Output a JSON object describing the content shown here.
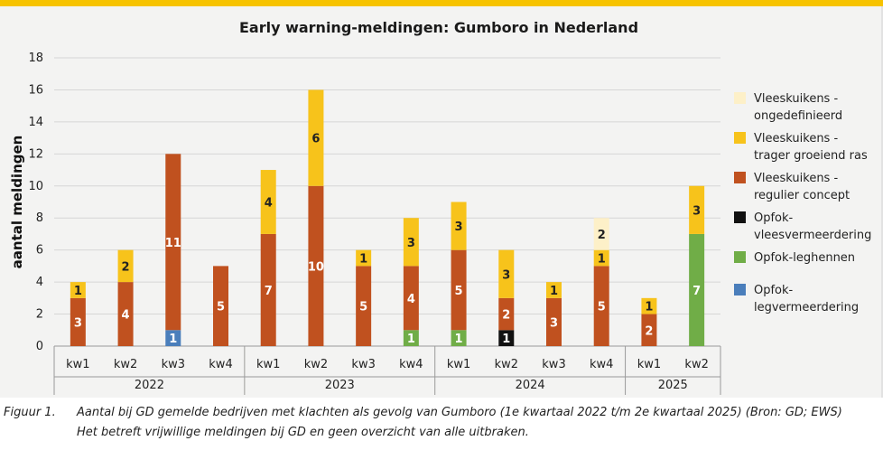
{
  "chart_data": {
    "type": "bar",
    "stacked": true,
    "title": "Early warning-meldingen: Gumboro in Nederland",
    "ylabel": "aantal meldingen",
    "ylim": [
      0,
      18
    ],
    "yticks": [
      "0",
      "2",
      "4",
      "6",
      "8",
      "10",
      "12",
      "14",
      "16",
      "18"
    ],
    "categories": [
      "kw1",
      "kw2",
      "kw3",
      "kw4",
      "kw1",
      "kw2",
      "kw3",
      "kw4",
      "kw1",
      "kw2",
      "kw3",
      "kw4",
      "kw1",
      "kw2"
    ],
    "years": [
      {
        "label": "2022",
        "count": 4
      },
      {
        "label": "2023",
        "count": 4
      },
      {
        "label": "2024",
        "count": 4
      },
      {
        "label": "2025",
        "count": 2
      }
    ],
    "series": [
      {
        "name": "Opfok-legvermeerdering",
        "color": "#4a7ebb",
        "values": [
          0,
          0,
          1,
          0,
          0,
          0,
          0,
          0,
          0,
          0,
          0,
          0,
          0,
          0
        ]
      },
      {
        "name": "Opfok-leghennen",
        "color": "#70ad47",
        "values": [
          0,
          0,
          0,
          0,
          0,
          0,
          0,
          1,
          1,
          0,
          0,
          0,
          0,
          7
        ]
      },
      {
        "name": "Opfok-vleesvermeerdering",
        "color": "#111111",
        "values": [
          0,
          0,
          0,
          0,
          0,
          0,
          0,
          0,
          0,
          1,
          0,
          0,
          0,
          0
        ]
      },
      {
        "name": "Vleeskuikens - regulier concept",
        "color": "#c0511f",
        "values": [
          3,
          4,
          11,
          5,
          7,
          10,
          5,
          4,
          5,
          2,
          3,
          5,
          2,
          0
        ]
      },
      {
        "name": "Vleeskuikens - trager groeiend ras",
        "color": "#f7c31b",
        "values": [
          1,
          2,
          0,
          0,
          4,
          6,
          1,
          3,
          3,
          3,
          1,
          1,
          1,
          3
        ]
      },
      {
        "name": "Vleeskuikens - ongedefinieerd",
        "color": "#fdf0c8",
        "values": [
          0,
          0,
          0,
          0,
          0,
          0,
          0,
          0,
          0,
          0,
          0,
          2,
          0,
          0
        ]
      }
    ],
    "legend": {
      "position": "right",
      "order": [
        {
          "lines": [
            "Vleeskuikens -",
            "ongedefinieerd"
          ],
          "color": "#fdf0c8"
        },
        {
          "lines": [
            "Vleeskuikens -",
            "trager groeiend ras"
          ],
          "color": "#f7c31b"
        },
        {
          "lines": [
            "Vleeskuikens -",
            "regulier concept"
          ],
          "color": "#c0511f"
        },
        {
          "lines": [
            "Opfok-",
            "vleesvermeerdering"
          ],
          "color": "#111111"
        },
        {
          "lines": [
            "Opfok-leghennen"
          ],
          "color": "#70ad47"
        },
        {
          "lines": [
            "Opfok-",
            "legvermeerdering"
          ],
          "color": "#4a7ebb"
        }
      ]
    },
    "grid": true
  },
  "caption": {
    "label": "Figuur 1.",
    "line1": "Aantal bij GD gemelde bedrijven met klachten als gevolg van Gumboro (1e kwartaal 2022 t/m 2e kwartaal 2025) (Bron: GD; EWS)",
    "line2": "Het betreft vrijwillige meldingen bij GD en geen overzicht van alle uitbraken."
  }
}
